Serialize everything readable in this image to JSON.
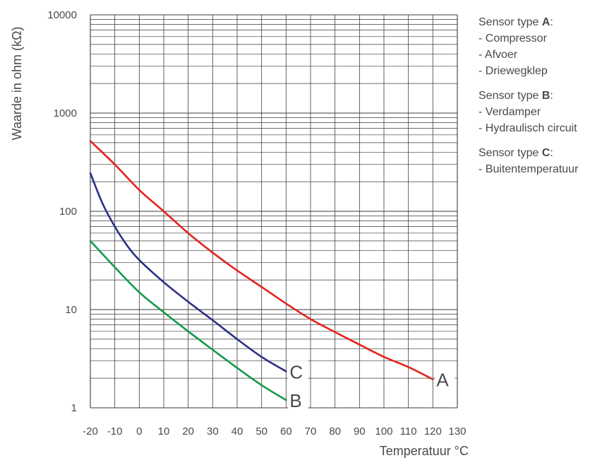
{
  "chart_data": {
    "type": "line",
    "ylabel": "Waarde in ohm (kΩ)",
    "xlabel": "Temperatuur °C",
    "y_scale": "log",
    "ylim": [
      1,
      10000
    ],
    "xlim": [
      -20,
      130
    ],
    "grid": true,
    "x_ticks": [
      "-20",
      "-10",
      "0",
      "10",
      "20",
      "30",
      "40",
      "50",
      "60",
      "70",
      "80",
      "90",
      "100",
      "110",
      "120",
      "130"
    ],
    "y_ticks": [
      "1",
      "10",
      "100",
      "1000",
      "10000"
    ],
    "series": [
      {
        "name": "A",
        "color": "#e3231f",
        "x": [
          -20,
          -10,
          0,
          10,
          20,
          30,
          40,
          50,
          60,
          70,
          80,
          90,
          100,
          110,
          120
        ],
        "y": [
          520,
          300,
          165,
          100,
          60,
          38,
          25,
          17,
          11.5,
          8,
          5.9,
          4.4,
          3.3,
          2.6,
          1.95
        ]
      },
      {
        "name": "B",
        "color": "#149a4a",
        "x": [
          -20,
          -10,
          0,
          10,
          20,
          30,
          40,
          50,
          60
        ],
        "y": [
          50,
          27,
          15,
          9.4,
          6,
          3.9,
          2.55,
          1.7,
          1.2
        ]
      },
      {
        "name": "C",
        "color": "#2b2f85",
        "x": [
          -20,
          -15,
          -10,
          -5,
          0,
          10,
          20,
          30,
          40,
          50,
          60
        ],
        "y": [
          245,
          120,
          70,
          45,
          32,
          19,
          12,
          7.8,
          5,
          3.3,
          2.35
        ]
      }
    ]
  },
  "legend": [
    {
      "prefix": "Sensor type ",
      "type": "A",
      "suffix": ":",
      "items": [
        "- Compressor",
        "- Afvoer",
        "- Driewegklep"
      ]
    },
    {
      "prefix": "Sensor type ",
      "type": "B",
      "suffix": ":",
      "items": [
        "- Verdamper",
        "- Hydraulisch circuit"
      ]
    },
    {
      "prefix": "Sensor type ",
      "type": "C",
      "suffix": ":",
      "items": [
        "- Buitentemperatuur"
      ]
    }
  ]
}
